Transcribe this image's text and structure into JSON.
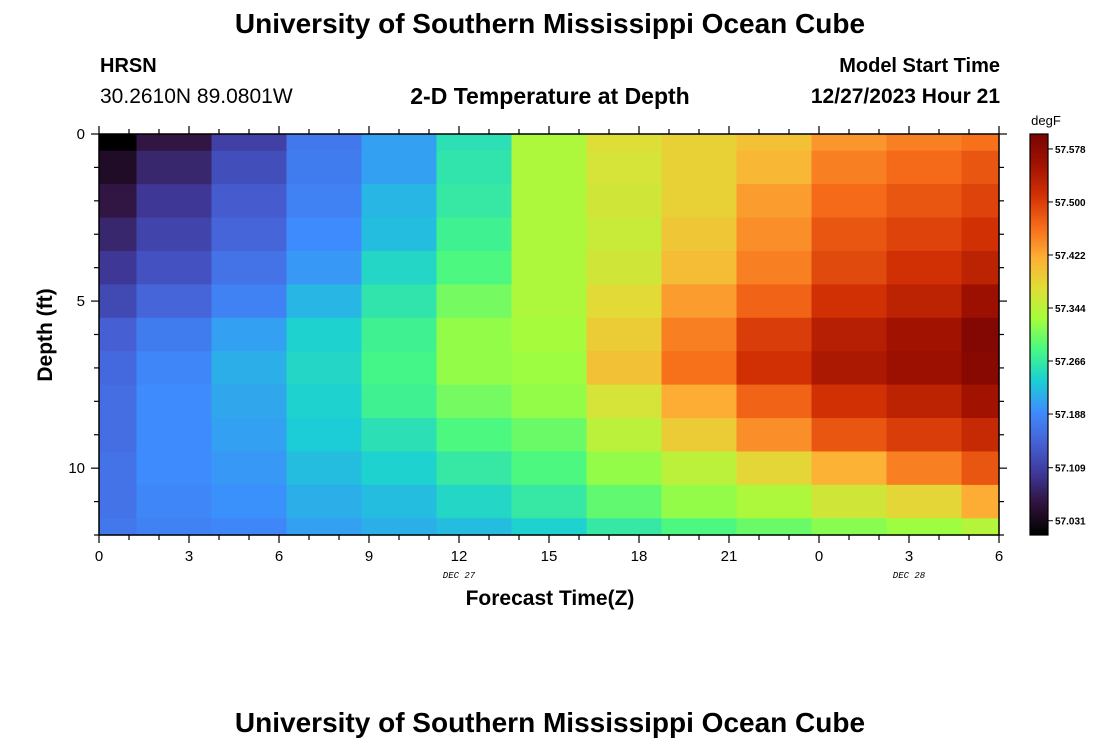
{
  "page": {
    "title": "University of Southern Mississippi Ocean Cube",
    "title_repeat": "University of Southern Mississippi Ocean Cube",
    "station": "HRSN",
    "coords": "30.2610N  89.0801W",
    "plot_title": "2-D Temperature at Depth",
    "model_label": "Model Start Time",
    "model_time": "12/27/2023 Hour 21"
  },
  "chart_data": {
    "type": "heatmap",
    "title": "2-D Temperature at Depth",
    "xlabel": "Forecast Time(Z)",
    "ylabel": "Depth (ft)",
    "units": "degF",
    "x_tick_labels": [
      "0",
      "3",
      "6",
      "9",
      "12",
      "15",
      "18",
      "21",
      "0",
      "3",
      "6"
    ],
    "x_tick_hours": [
      0,
      3,
      6,
      9,
      12,
      15,
      18,
      21,
      24,
      27,
      30
    ],
    "date_labels": [
      {
        "hour": 12,
        "text": "DEC 27"
      },
      {
        "hour": 27,
        "text": "DEC 28"
      }
    ],
    "xlim": [
      0,
      30
    ],
    "y_tick_labels": [
      "0",
      "5",
      "10"
    ],
    "y_tick_values": [
      0,
      5,
      10
    ],
    "ylim": [
      0,
      12
    ],
    "col_edges": [
      0,
      1.25,
      3.75,
      6.25,
      8.75,
      11.25,
      13.75,
      16.25,
      18.75,
      21.25,
      23.75,
      26.25,
      28.75,
      30
    ],
    "row_edges": [
      0,
      0.5,
      1.5,
      2.5,
      3.5,
      4.5,
      5.5,
      6.5,
      7.5,
      8.5,
      9.5,
      10.5,
      11.5,
      12
    ],
    "values": [
      [
        57.01,
        57.06,
        57.11,
        57.17,
        57.205,
        57.255,
        57.335,
        57.37,
        57.385,
        57.4,
        57.435,
        57.45,
        57.46
      ],
      [
        57.04,
        57.08,
        57.125,
        57.175,
        57.205,
        57.26,
        57.335,
        57.365,
        57.385,
        57.41,
        57.45,
        57.465,
        57.48
      ],
      [
        57.06,
        57.1,
        57.14,
        57.18,
        57.22,
        57.265,
        57.335,
        57.36,
        57.385,
        57.43,
        57.465,
        57.48,
        57.495
      ],
      [
        57.08,
        57.115,
        57.15,
        57.19,
        57.225,
        57.275,
        57.335,
        57.355,
        57.395,
        57.44,
        57.48,
        57.495,
        57.51
      ],
      [
        57.1,
        57.13,
        57.165,
        57.2,
        57.245,
        57.285,
        57.335,
        57.36,
        57.405,
        57.45,
        57.49,
        57.51,
        57.53
      ],
      [
        57.12,
        57.15,
        57.18,
        57.22,
        57.26,
        57.305,
        57.335,
        57.375,
        57.43,
        57.47,
        57.51,
        57.53,
        57.56
      ],
      [
        57.145,
        57.175,
        57.205,
        57.24,
        57.275,
        57.32,
        57.33,
        57.39,
        57.45,
        57.5,
        57.535,
        57.555,
        57.59
      ],
      [
        57.155,
        57.185,
        57.215,
        57.245,
        57.28,
        57.32,
        57.325,
        57.4,
        57.46,
        57.51,
        57.545,
        57.56,
        57.585
      ],
      [
        57.16,
        57.19,
        57.21,
        57.24,
        57.275,
        57.305,
        57.32,
        57.365,
        57.42,
        57.47,
        57.51,
        57.53,
        57.555
      ],
      [
        57.16,
        57.19,
        57.205,
        57.235,
        57.255,
        57.285,
        57.3,
        57.345,
        57.39,
        57.44,
        57.48,
        57.5,
        57.52
      ],
      [
        57.165,
        57.19,
        57.2,
        57.225,
        57.24,
        57.265,
        57.285,
        57.32,
        57.345,
        57.38,
        57.415,
        57.45,
        57.48
      ],
      [
        57.165,
        57.185,
        57.195,
        57.215,
        57.225,
        57.245,
        57.265,
        57.295,
        57.32,
        57.335,
        57.36,
        57.38,
        57.42
      ],
      [
        57.17,
        57.18,
        57.185,
        57.205,
        57.215,
        57.225,
        57.24,
        57.265,
        57.285,
        57.3,
        57.315,
        57.325,
        57.34
      ]
    ],
    "colorbar": {
      "label": "degF",
      "vmin": 57.01,
      "vmax": 57.6,
      "tick_values": [
        57.031,
        57.109,
        57.188,
        57.266,
        57.344,
        57.422,
        57.5,
        57.578
      ],
      "tick_labels": [
        "57.031",
        "57.109",
        "57.188",
        "57.266",
        "57.344",
        "57.422",
        "57.500",
        "57.578"
      ]
    },
    "colormap": [
      "#000000",
      "#30123b",
      "#3e3898",
      "#4661d6",
      "#3e8cfe",
      "#1bcfd4",
      "#46f884",
      "#a3fd3d",
      "#e1dd37",
      "#fdae35",
      "#f66b19",
      "#d23105",
      "#a11201",
      "#7a0403"
    ]
  }
}
